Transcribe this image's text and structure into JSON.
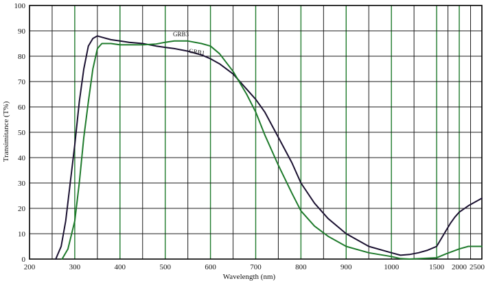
{
  "chart_data": {
    "type": "line",
    "xlabel": "Wavelength (nm)",
    "ylabel": "Transimitance (T%)",
    "ylim": [
      0,
      100
    ],
    "yticks": [
      0,
      10,
      20,
      30,
      40,
      50,
      60,
      70,
      80,
      90,
      100
    ],
    "x_axis_scale": "wavelength axis with a compressed scale after 900 nm",
    "xticks": [
      {
        "label": "200",
        "value": 200
      },
      {
        "label": "300",
        "value": 300
      },
      {
        "label": "400",
        "value": 400
      },
      {
        "label": "500",
        "value": 500
      },
      {
        "label": "600",
        "value": 600
      },
      {
        "label": "700",
        "value": 700
      },
      {
        "label": "800",
        "value": 800
      },
      {
        "label": "900",
        "value": 900
      },
      {
        "label": "1000",
        "value": 1000
      },
      {
        "label": "1500",
        "value": 1500
      },
      {
        "label": "2000",
        "value": 2000
      },
      {
        "label": "2500",
        "value": 2500
      }
    ],
    "grid": true,
    "series": [
      {
        "name": "GRB1",
        "color": "#1a1030",
        "points": [
          [
            258,
            0
          ],
          [
            270,
            5
          ],
          [
            280,
            15
          ],
          [
            290,
            30
          ],
          [
            300,
            45
          ],
          [
            310,
            62
          ],
          [
            320,
            75
          ],
          [
            330,
            84
          ],
          [
            340,
            87
          ],
          [
            350,
            88
          ],
          [
            360,
            87.5
          ],
          [
            370,
            87
          ],
          [
            380,
            86.5
          ],
          [
            400,
            86
          ],
          [
            420,
            85.5
          ],
          [
            450,
            85
          ],
          [
            480,
            84
          ],
          [
            500,
            83.5
          ],
          [
            520,
            83
          ],
          [
            550,
            82
          ],
          [
            580,
            80.5
          ],
          [
            600,
            79
          ],
          [
            620,
            77
          ],
          [
            650,
            73
          ],
          [
            680,
            67
          ],
          [
            700,
            63
          ],
          [
            720,
            58
          ],
          [
            750,
            48
          ],
          [
            780,
            38
          ],
          [
            800,
            30
          ],
          [
            830,
            22
          ],
          [
            860,
            16
          ],
          [
            900,
            10
          ],
          [
            950,
            5
          ],
          [
            1000,
            2.5
          ],
          [
            1100,
            1.5
          ],
          [
            1200,
            1.8
          ],
          [
            1300,
            2.5
          ],
          [
            1400,
            3.5
          ],
          [
            1500,
            5
          ],
          [
            1600,
            8
          ],
          [
            1700,
            11
          ],
          [
            1800,
            14
          ],
          [
            1900,
            16.5
          ],
          [
            2000,
            18.5
          ],
          [
            2200,
            21
          ],
          [
            2500,
            24
          ]
        ]
      },
      {
        "name": "GRB3",
        "color": "#1e7a2b",
        "points": [
          [
            272,
            0
          ],
          [
            285,
            4
          ],
          [
            300,
            15
          ],
          [
            310,
            30
          ],
          [
            320,
            48
          ],
          [
            330,
            62
          ],
          [
            340,
            75
          ],
          [
            350,
            83
          ],
          [
            360,
            85
          ],
          [
            380,
            85
          ],
          [
            400,
            84.5
          ],
          [
            450,
            84.5
          ],
          [
            480,
            84.8
          ],
          [
            500,
            85.5
          ],
          [
            520,
            86
          ],
          [
            550,
            86
          ],
          [
            580,
            85
          ],
          [
            600,
            84
          ],
          [
            620,
            81
          ],
          [
            650,
            74
          ],
          [
            680,
            65
          ],
          [
            700,
            58
          ],
          [
            720,
            49
          ],
          [
            750,
            37
          ],
          [
            780,
            26
          ],
          [
            800,
            19
          ],
          [
            830,
            13
          ],
          [
            860,
            9
          ],
          [
            900,
            5
          ],
          [
            950,
            2.5
          ],
          [
            1000,
            1
          ],
          [
            1100,
            0.2
          ],
          [
            1200,
            0
          ],
          [
            1500,
            0.5
          ],
          [
            1700,
            2
          ],
          [
            2000,
            4
          ],
          [
            2200,
            5
          ],
          [
            2500,
            5
          ]
        ]
      }
    ],
    "annotations": [
      "GRB3",
      "GRB1"
    ]
  },
  "colors": {
    "axis": "#000000",
    "grid_black": "#1a1a1a",
    "grid_green": "#1e7a2b"
  }
}
